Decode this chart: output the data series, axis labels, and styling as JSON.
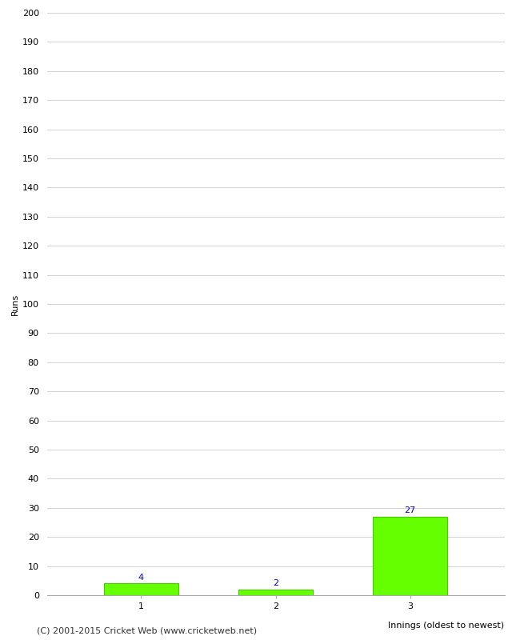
{
  "categories": [
    1,
    2,
    3
  ],
  "values": [
    4,
    2,
    27
  ],
  "bar_color": "#66ff00",
  "bar_edge_color": "#44cc00",
  "ylabel": "Runs",
  "xlabel": "Innings (oldest to newest)",
  "ylim": [
    0,
    200
  ],
  "yticks": [
    0,
    10,
    20,
    30,
    40,
    50,
    60,
    70,
    80,
    90,
    100,
    110,
    120,
    130,
    140,
    150,
    160,
    170,
    180,
    190,
    200
  ],
  "value_label_color": "#0000cc",
  "footnote": "(C) 2001-2015 Cricket Web (www.cricketweb.net)",
  "background_color": "#ffffff",
  "grid_color": "#cccccc",
  "tick_label_fontsize": 8,
  "axis_label_fontsize": 8,
  "footnote_fontsize": 8
}
